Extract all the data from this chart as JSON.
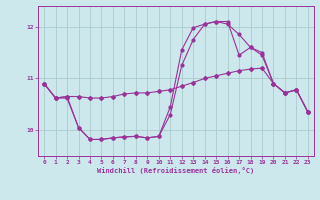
{
  "xlabel": "Windchill (Refroidissement éolien,°C)",
  "background_color": "#cce8ec",
  "grid_color": "#aacccc",
  "line_color": "#993399",
  "xlim": [
    -0.5,
    23.5
  ],
  "ylim": [
    9.5,
    12.4
  ],
  "yticks": [
    10,
    11,
    12
  ],
  "xticks": [
    0,
    1,
    2,
    3,
    4,
    5,
    6,
    7,
    8,
    9,
    10,
    11,
    12,
    13,
    14,
    15,
    16,
    17,
    18,
    19,
    20,
    21,
    22,
    23
  ],
  "series1_x": [
    0,
    1,
    2,
    3,
    4,
    5,
    6,
    7,
    8,
    9,
    10,
    11,
    12,
    13,
    14,
    15,
    16,
    17,
    18,
    19,
    20,
    21,
    22,
    23
  ],
  "series1_y": [
    10.9,
    10.62,
    10.65,
    10.65,
    10.62,
    10.62,
    10.65,
    10.7,
    10.72,
    10.72,
    10.75,
    10.78,
    10.85,
    10.92,
    11.0,
    11.05,
    11.1,
    11.15,
    11.18,
    11.2,
    10.9,
    10.72,
    10.78,
    10.35
  ],
  "series2_x": [
    0,
    1,
    2,
    3,
    4,
    5,
    6,
    7,
    8,
    9,
    10,
    11,
    12,
    13,
    14,
    15,
    16,
    17,
    18,
    19,
    20,
    21,
    22,
    23
  ],
  "series2_y": [
    10.9,
    10.62,
    10.65,
    10.05,
    9.82,
    9.82,
    9.85,
    9.87,
    9.88,
    9.85,
    9.88,
    10.45,
    11.55,
    11.98,
    12.05,
    12.1,
    12.05,
    11.85,
    11.6,
    11.5,
    10.9,
    10.72,
    10.78,
    10.35
  ],
  "series3_x": [
    0,
    1,
    2,
    3,
    4,
    5,
    6,
    7,
    8,
    9,
    10,
    11,
    12,
    13,
    14,
    15,
    16,
    17,
    18,
    19,
    20,
    21,
    22,
    23
  ],
  "series3_y": [
    10.9,
    10.62,
    10.62,
    10.05,
    9.82,
    9.82,
    9.85,
    9.87,
    9.88,
    9.85,
    9.88,
    10.3,
    11.25,
    11.75,
    12.05,
    12.1,
    12.1,
    11.45,
    11.6,
    11.45,
    10.9,
    10.72,
    10.78,
    10.35
  ]
}
